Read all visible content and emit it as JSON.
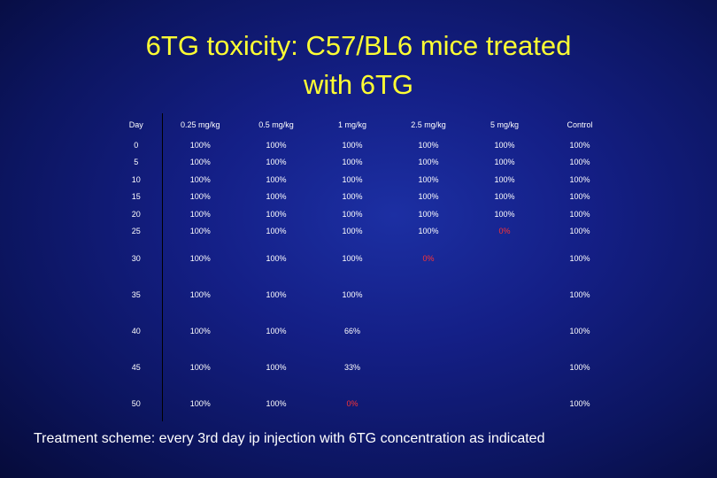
{
  "slide": {
    "title_line1": "6TG toxicity: C57/BL6 mice treated",
    "title_line2": "with 6TG",
    "footer": "Treatment scheme: every 3rd day ip injection with 6TG concentration as indicated"
  },
  "colors": {
    "title": "#ffff33",
    "text": "#ffffff",
    "highlight": "#ff3333",
    "background": "#141f86"
  },
  "table": {
    "headers": [
      "Day",
      "0.25 mg/kg",
      "0.5 mg/kg",
      "1 mg/kg",
      "2.5 mg/kg",
      "5 mg/kg",
      "Control"
    ],
    "rows": [
      [
        "0",
        "100%",
        "100%",
        "100%",
        "100%",
        "100%",
        "100%"
      ],
      [
        "5",
        "100%",
        "100%",
        "100%",
        "100%",
        "100%",
        "100%"
      ],
      [
        "10",
        "100%",
        "100%",
        "100%",
        "100%",
        "100%",
        "100%"
      ],
      [
        "15",
        "100%",
        "100%",
        "100%",
        "100%",
        "100%",
        "100%"
      ],
      [
        "20",
        "100%",
        "100%",
        "100%",
        "100%",
        "100%",
        "100%"
      ],
      [
        "25",
        "100%",
        "100%",
        "100%",
        "100%",
        "0%",
        "100%"
      ],
      [
        "30",
        "100%",
        "100%",
        "100%",
        "0%",
        "",
        "100%"
      ],
      [
        "35",
        "100%",
        "100%",
        "100%",
        "",
        "",
        "100%"
      ],
      [
        "40",
        "100%",
        "100%",
        "66%",
        "",
        "",
        "100%"
      ],
      [
        "45",
        "100%",
        "100%",
        "33%",
        "",
        "",
        "100%"
      ],
      [
        "50",
        "100%",
        "100%",
        "0%",
        "",
        "",
        "100%"
      ]
    ]
  }
}
